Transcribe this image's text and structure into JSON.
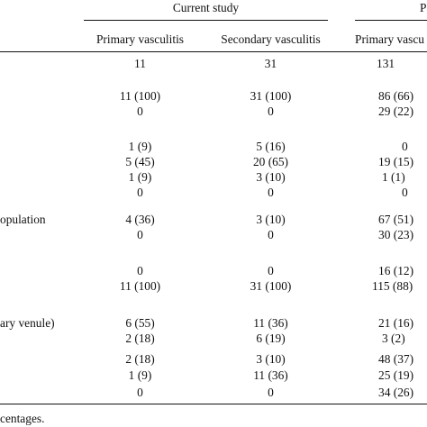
{
  "header": {
    "group_current": "Current study",
    "group_previous_partial": "P",
    "col1": "Primary vasculitis",
    "col2": "Secondary vasculitis",
    "col3_partial": "Primary vascu"
  },
  "row_labels": {
    "label_population": "opulation",
    "label_venule": "ary venule)"
  },
  "rows": [
    {
      "c1": "11",
      "c2": "31",
      "c3": "131"
    },
    {
      "c1": "11 (100)",
      "c2": "31 (100)",
      "c3": "86 (66)"
    },
    {
      "c1": "0",
      "c2": "0",
      "c3": "29 (22)"
    },
    {
      "c1": "1 (9)",
      "c2": "5 (16)",
      "c3": "0"
    },
    {
      "c1": "5 (45)",
      "c2": "20 (65)",
      "c3": "19 (15)"
    },
    {
      "c1": "1 (9)",
      "c2": "3 (10)",
      "c3": "1 (1)"
    },
    {
      "c1": "0",
      "c2": "0",
      "c3": "0"
    },
    {
      "c1": "4 (36)",
      "c2": "3 (10)",
      "c3": "67 (51)"
    },
    {
      "c1": "0",
      "c2": "0",
      "c3": "30 (23)"
    },
    {
      "c1": "0",
      "c2": "0",
      "c3": "16 (12)"
    },
    {
      "c1": "11 (100)",
      "c2": "31 (100)",
      "c3": "115 (88)"
    },
    {
      "c1": "6 (55)",
      "c2": "11 (36)",
      "c3": "21 (16)"
    },
    {
      "c1": "2 (18)",
      "c2": "6 (19)",
      "c3": "3 (2)"
    },
    {
      "c1": "2 (18)",
      "c2": "3 (10)",
      "c3": "48 (37)"
    },
    {
      "c1": "1 (9)",
      "c2": "11 (36)",
      "c3": "25 (19)"
    },
    {
      "c1": "0",
      "c2": "0",
      "c3": "34 (26)"
    }
  ],
  "footnote": "centages."
}
